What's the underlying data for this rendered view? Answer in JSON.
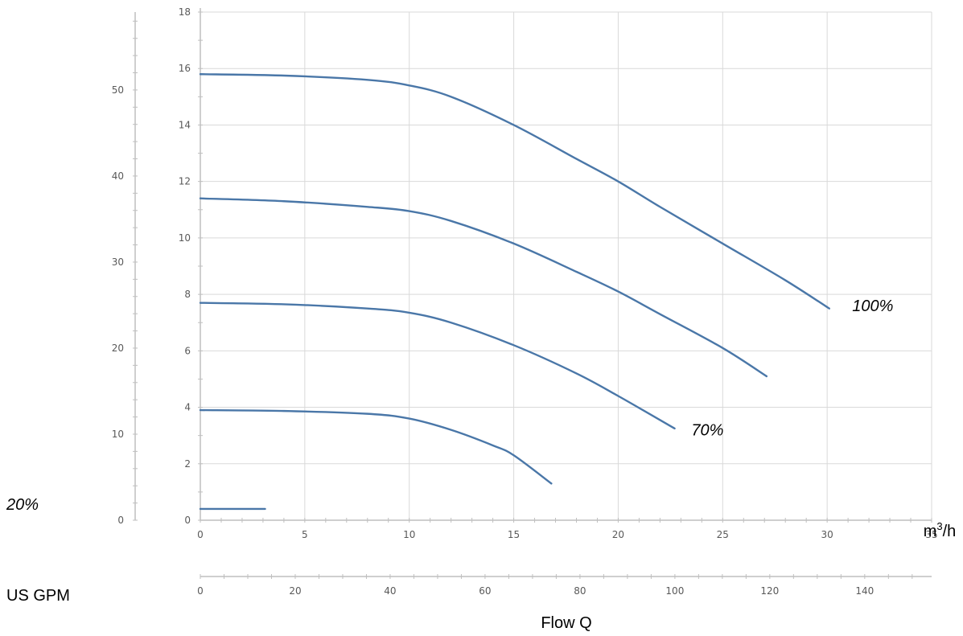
{
  "chart_data": {
    "type": "line",
    "x_axis": {
      "unit": "m³/h",
      "unit_base": "m",
      "unit_sup": "3",
      "unit_rest": "/h",
      "range": [
        0,
        35
      ],
      "ticks": [
        0,
        5,
        10,
        15,
        20,
        25,
        30,
        35
      ],
      "grid": true
    },
    "y_axis": {
      "range": [
        0,
        18
      ],
      "ticks": [
        0,
        2,
        4,
        6,
        8,
        10,
        12,
        14,
        16,
        18
      ],
      "grid": true
    },
    "y2_axis": {
      "range": [
        0,
        59.055
      ],
      "ticks": [
        0,
        10,
        20,
        30,
        40,
        50
      ]
    },
    "x2_axis": {
      "label": "US GPM",
      "range": [
        0,
        154.1
      ],
      "ticks": [
        0,
        20,
        40,
        60,
        80,
        100,
        120,
        140
      ]
    },
    "xlabel": "Flow Q",
    "series": [
      {
        "name": "100%",
        "label_at": [
          31.2,
          7.4
        ],
        "points": [
          [
            0,
            15.8
          ],
          [
            4,
            15.75
          ],
          [
            8,
            15.6
          ],
          [
            10,
            15.4
          ],
          [
            12,
            15.0
          ],
          [
            15,
            14.0
          ],
          [
            18,
            12.8
          ],
          [
            20,
            12.0
          ],
          [
            22,
            11.1
          ],
          [
            25,
            9.8
          ],
          [
            28,
            8.5
          ],
          [
            30.1,
            7.5
          ]
        ]
      },
      {
        "name": "",
        "label_at": null,
        "points": [
          [
            0,
            11.4
          ],
          [
            4,
            11.3
          ],
          [
            8,
            11.1
          ],
          [
            10,
            10.95
          ],
          [
            12,
            10.6
          ],
          [
            15,
            9.8
          ],
          [
            18,
            8.8
          ],
          [
            20,
            8.1
          ],
          [
            22,
            7.3
          ],
          [
            25,
            6.1
          ],
          [
            27.1,
            5.1
          ]
        ]
      },
      {
        "name": "70%",
        "label_at": [
          23.5,
          3.0
        ],
        "points": [
          [
            0,
            7.7
          ],
          [
            4,
            7.65
          ],
          [
            8,
            7.5
          ],
          [
            10,
            7.35
          ],
          [
            12,
            7.0
          ],
          [
            15,
            6.2
          ],
          [
            18,
            5.2
          ],
          [
            20,
            4.4
          ],
          [
            22.7,
            3.25
          ]
        ]
      },
      {
        "name": "",
        "label_at": null,
        "points": [
          [
            0,
            3.9
          ],
          [
            4,
            3.87
          ],
          [
            8,
            3.77
          ],
          [
            10,
            3.6
          ],
          [
            12,
            3.2
          ],
          [
            14,
            2.65
          ],
          [
            15,
            2.3
          ],
          [
            16.8,
            1.3
          ]
        ]
      },
      {
        "name": "20%",
        "label_at": null,
        "points": [
          [
            0,
            0.4
          ],
          [
            3.1,
            0.4
          ]
        ]
      }
    ]
  }
}
